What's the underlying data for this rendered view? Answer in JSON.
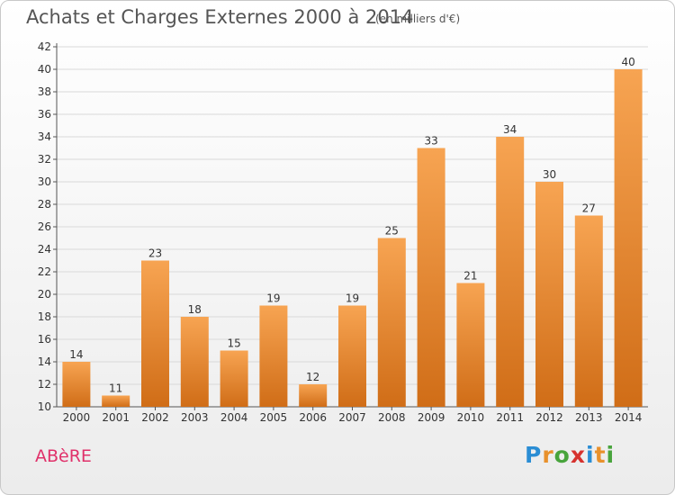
{
  "header": {
    "title": "Achats et Charges Externes 2000 à 2014",
    "subtitle": "(en milliers d'€)"
  },
  "footer": {
    "commune": "ABèRE",
    "brand_letters": [
      "P",
      "r",
      "o",
      "x",
      "i",
      "t",
      "i"
    ],
    "brand_colors": [
      "#2a8dd4",
      "#e8912c",
      "#48a43c",
      "#d6322e",
      "#2a8dd4",
      "#e8912c",
      "#48a43c"
    ]
  },
  "colors": {
    "bar_top": "#f7a452",
    "bar_bottom": "#d06d17",
    "axis": "#555555",
    "grid": "#d9d9d9",
    "commune": "#e0316a"
  },
  "chart_data": {
    "type": "bar",
    "categories": [
      "2000",
      "2001",
      "2002",
      "2003",
      "2004",
      "2005",
      "2006",
      "2007",
      "2008",
      "2009",
      "2010",
      "2011",
      "2012",
      "2013",
      "2014"
    ],
    "values": [
      14,
      11,
      23,
      18,
      15,
      19,
      12,
      19,
      25,
      33,
      21,
      34,
      30,
      27,
      40
    ],
    "ylim": [
      10,
      42
    ],
    "yticks": [
      10,
      12,
      14,
      16,
      18,
      20,
      22,
      24,
      26,
      28,
      30,
      32,
      34,
      36,
      38,
      40,
      42
    ],
    "grid": true,
    "data_labels": true
  }
}
